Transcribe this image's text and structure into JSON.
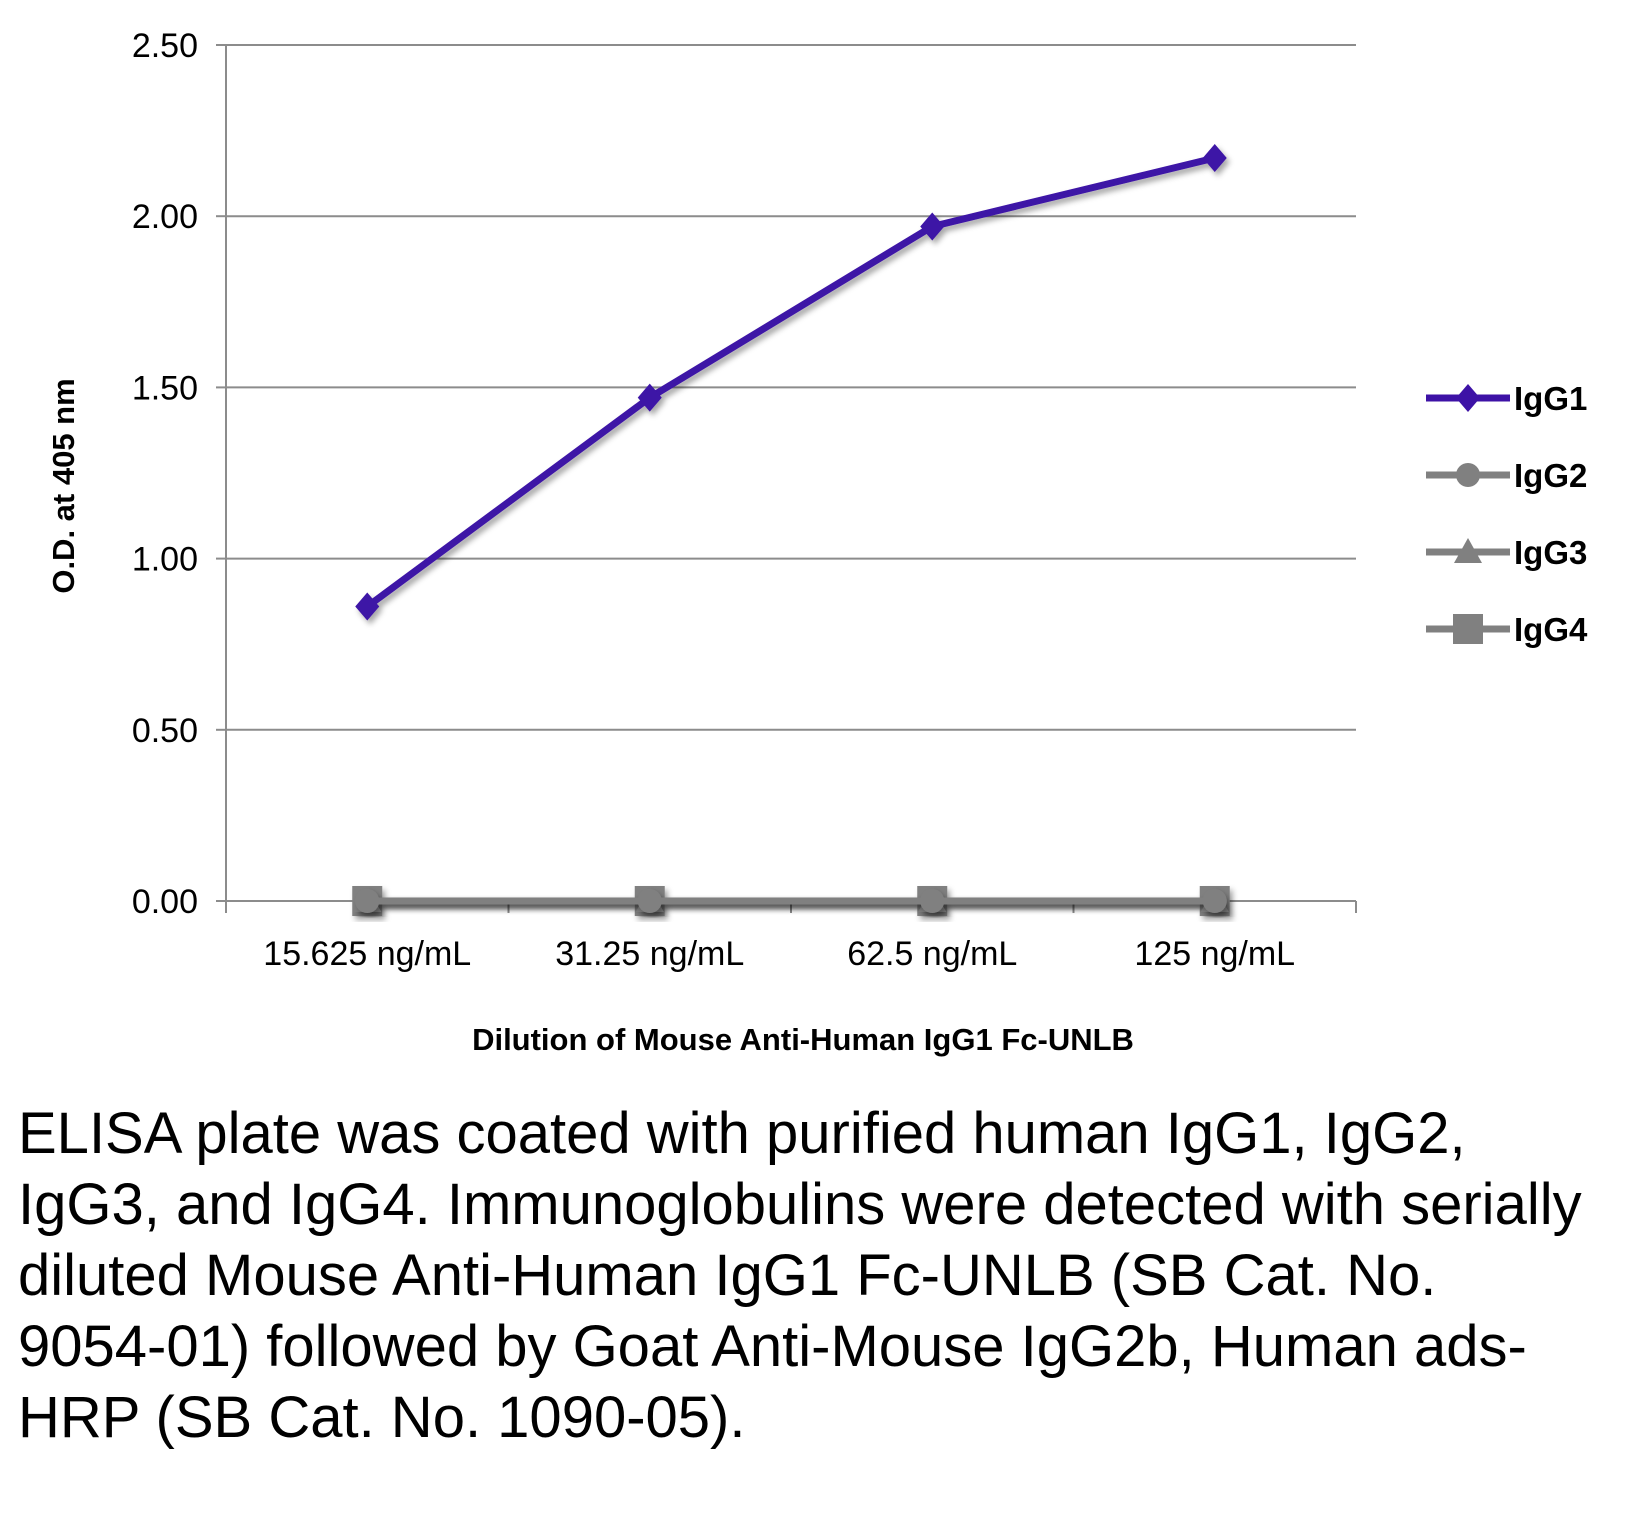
{
  "chart_data": {
    "type": "line",
    "title": "",
    "xlabel": "Dilution of Mouse Anti-Human IgG1 Fc-UNLB",
    "ylabel": "O.D. at 405 nm",
    "categories": [
      "15.625 ng/mL",
      "31.25 ng/mL",
      "62.5 ng/mL",
      "125 ng/mL"
    ],
    "ylim": [
      0,
      2.5
    ],
    "yticks": [
      "0.00",
      "0.50",
      "1.00",
      "1.50",
      "2.00",
      "2.50"
    ],
    "grid": true,
    "legend_position": "right",
    "series": [
      {
        "name": "IgG1",
        "values": [
          0.86,
          1.47,
          1.97,
          2.17
        ],
        "color": "#3d12a6",
        "marker": "diamond"
      },
      {
        "name": "IgG2",
        "values": [
          0.0,
          0.0,
          0.0,
          0.0
        ],
        "color": "#808080",
        "marker": "circle"
      },
      {
        "name": "IgG3",
        "values": [
          0.0,
          0.0,
          0.0,
          0.0
        ],
        "color": "#808080",
        "marker": "triangle"
      },
      {
        "name": "IgG4",
        "values": [
          0.0,
          0.0,
          0.0,
          0.0
        ],
        "color": "#808080",
        "marker": "square"
      }
    ]
  },
  "caption": "ELISA plate was coated with purified human IgG1, IgG2, IgG3, and IgG4.  Immunoglobulins were detected with serially diluted Mouse Anti-Human IgG1 Fc-UNLB (SB Cat. No. 9054-01) followed by Goat Anti-Mouse IgG2b, Human ads-HRP (SB Cat. No. 1090-05)."
}
